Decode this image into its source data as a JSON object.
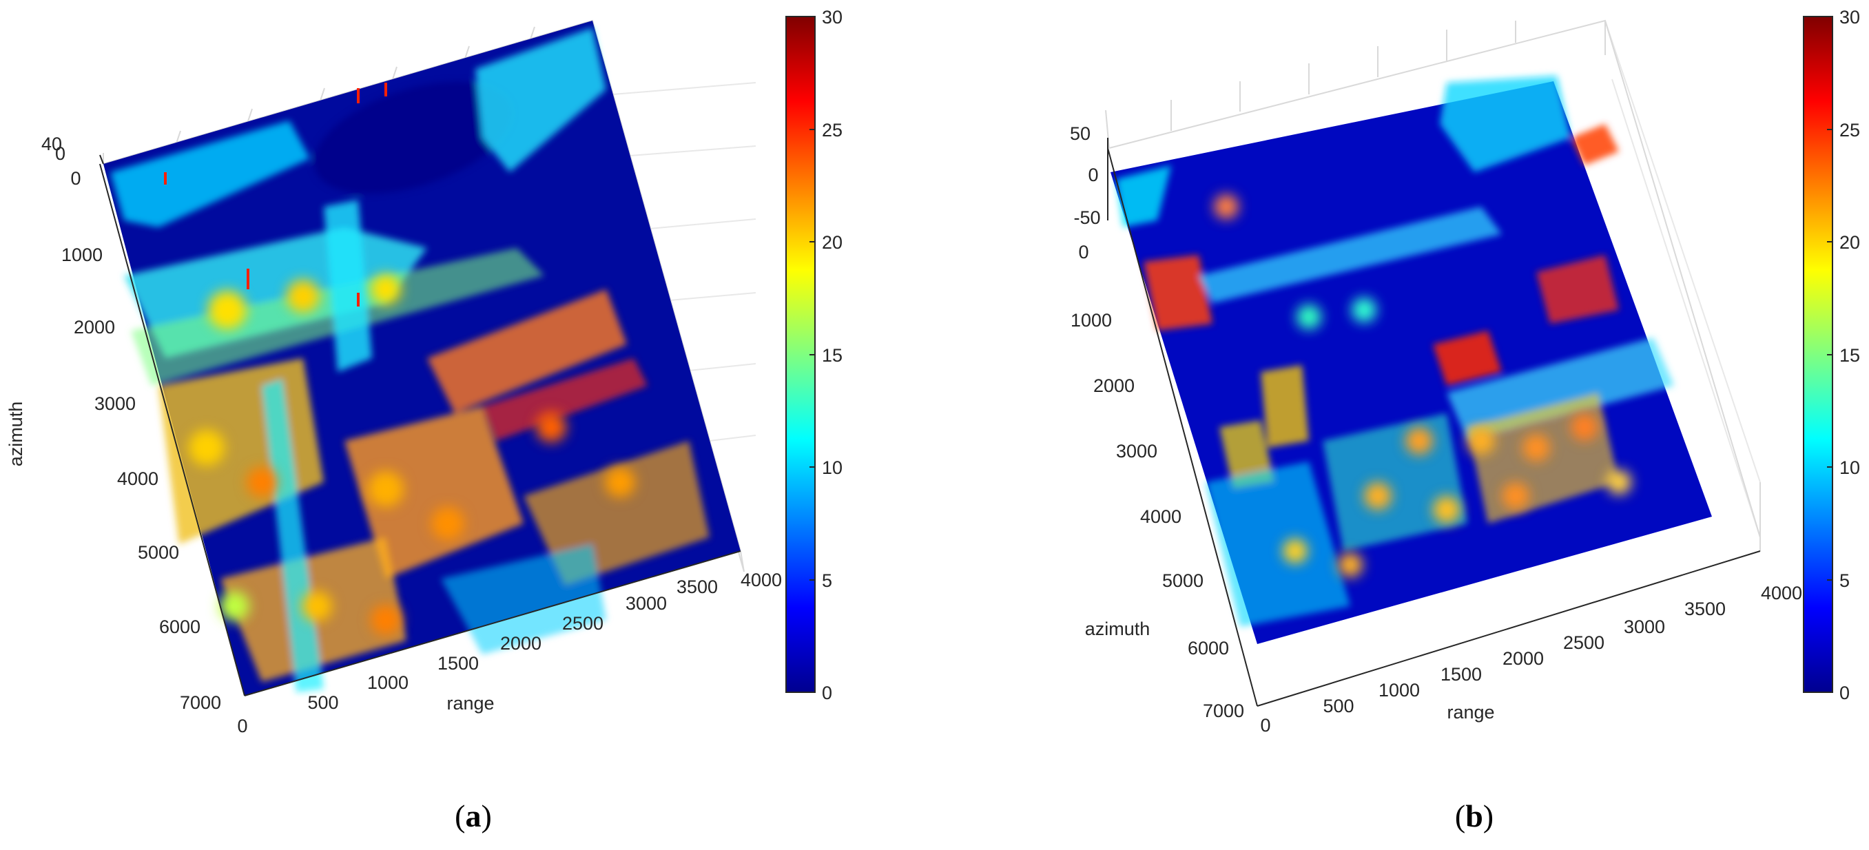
{
  "chart_data": [
    {
      "type": "surface3d",
      "panel_label": "a",
      "xlabel": "range",
      "ylabel": "azimuth",
      "zlabel": "",
      "x_ticks": [
        "0",
        "500",
        "1000",
        "1500",
        "2000",
        "2500",
        "3000",
        "3500",
        "4000"
      ],
      "y_ticks": [
        "0",
        "1000",
        "2000",
        "3000",
        "4000",
        "5000",
        "6000",
        "7000"
      ],
      "z_ticks": [
        "40",
        "0"
      ],
      "xlim": [
        0,
        4000
      ],
      "ylim": [
        0,
        7000
      ],
      "colorbar": {
        "colormap": "jet",
        "min": 0,
        "max": 30,
        "ticks": [
          "0",
          "5",
          "10",
          "15",
          "20",
          "25",
          "30"
        ]
      },
      "grid": true
    },
    {
      "type": "surface3d",
      "panel_label": "b",
      "xlabel": "range",
      "ylabel": "azimuth",
      "zlabel": "",
      "x_ticks": [
        "0",
        "500",
        "1000",
        "1500",
        "2000",
        "2500",
        "3000",
        "3500",
        "4000"
      ],
      "y_ticks": [
        "0",
        "1000",
        "2000",
        "3000",
        "4000",
        "5000",
        "6000",
        "7000"
      ],
      "z_ticks": [
        "50",
        "0",
        "-50"
      ],
      "xlim": [
        0,
        4000
      ],
      "ylim": [
        0,
        7000
      ],
      "colorbar": {
        "colormap": "jet",
        "min": 0,
        "max": 30,
        "ticks": [
          "0",
          "5",
          "10",
          "15",
          "20",
          "25",
          "30"
        ]
      },
      "grid": true
    }
  ]
}
